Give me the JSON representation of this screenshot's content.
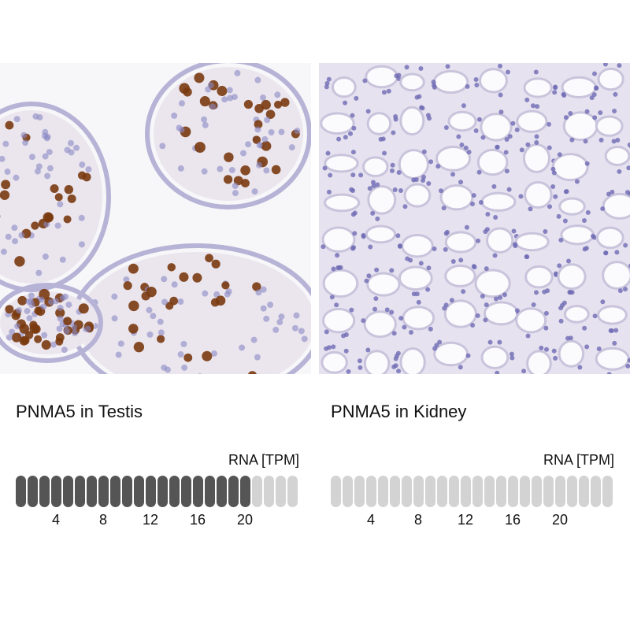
{
  "panels": [
    {
      "title": "PNMA5 in Testis",
      "rna_label": "RNA [TPM]",
      "filled_segments": 20,
      "total_segments": 24,
      "tissue": "testis",
      "stain": "strong nuclear"
    },
    {
      "title": "PNMA5 in Kidney",
      "rna_label": "RNA [TPM]",
      "filled_segments": 0,
      "total_segments": 24,
      "tissue": "kidney",
      "stain": "none"
    }
  ],
  "ticks": [
    "4",
    "8",
    "12",
    "16",
    "20"
  ],
  "colors": {
    "filled": "#555555",
    "empty": "#d3d3d3",
    "hematoxylin": "#8a88c4",
    "dab": "#7a3a10",
    "tissue_bg": "#e6e2ef"
  }
}
